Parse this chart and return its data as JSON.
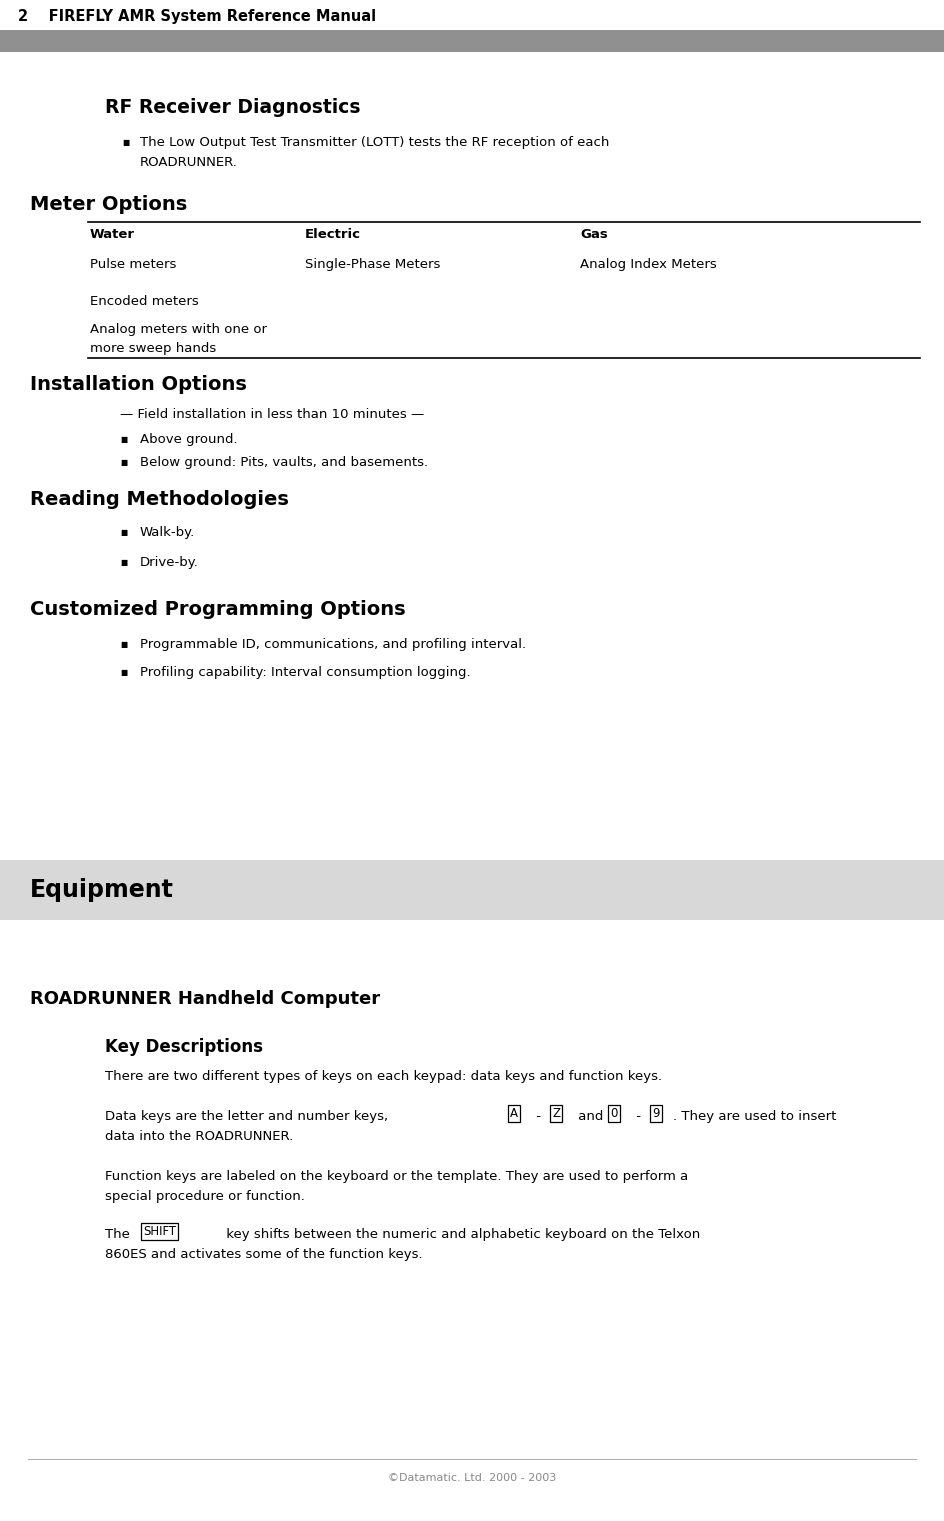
{
  "pw": 9.44,
  "ph": 15.21,
  "dpi": 100,
  "bg": "#ffffff",
  "header_bg": "#808080",
  "header_text": "2    FIREFLY AMR System Reference Manual",
  "equipment_bg": "#d8d8d8",
  "equipment_text": "Equipment",
  "footer_text": "©Datamatic. Ltd. 2000 - 2003",
  "footer_color": "#888888"
}
